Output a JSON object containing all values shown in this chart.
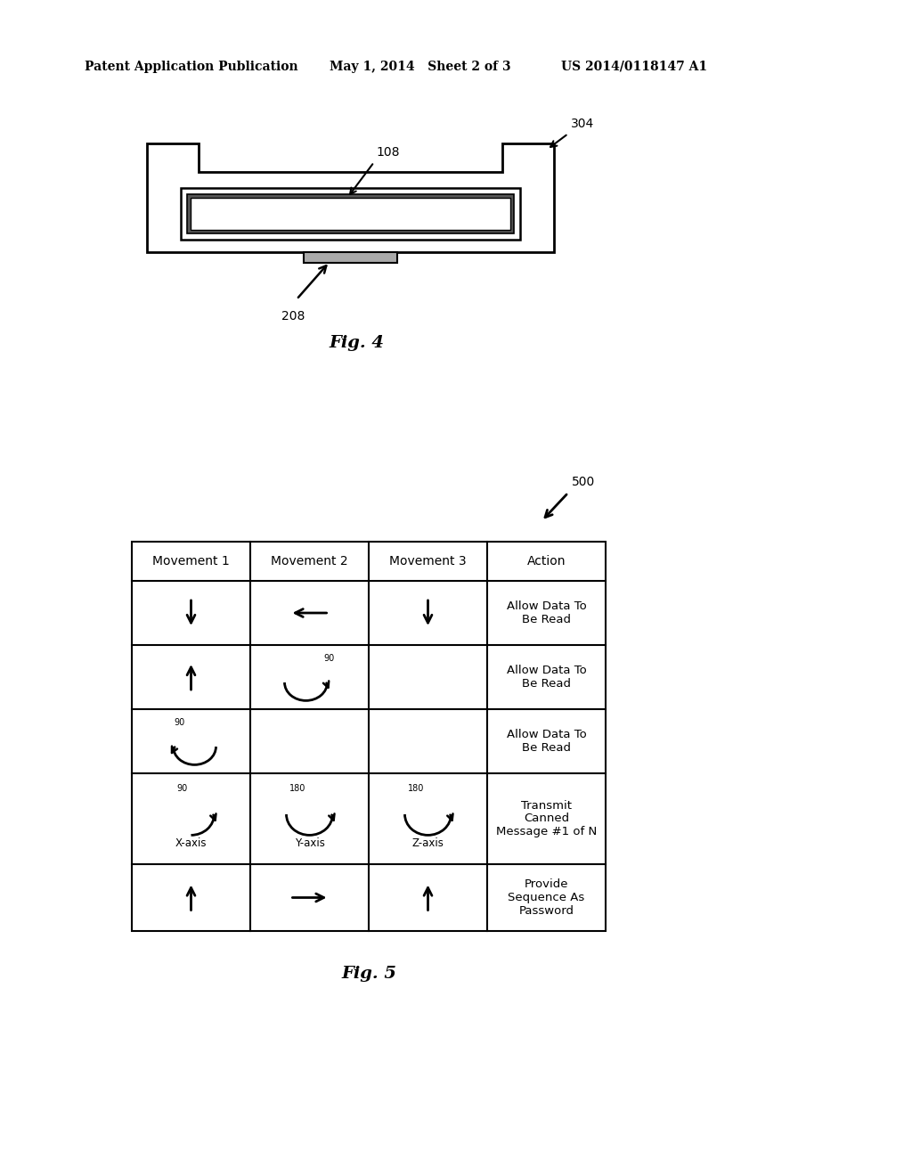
{
  "header_left": "Patent Application Publication",
  "header_mid": "May 1, 2014   Sheet 2 of 3",
  "header_right": "US 2014/0118147 A1",
  "fig4_label": "Fig. 4",
  "fig5_label": "Fig. 5",
  "label_108": "108",
  "label_304": "304",
  "label_208": "208",
  "label_500": "500",
  "table_headers": [
    "Movement 1",
    "Movement 2",
    "Movement 3",
    "Action"
  ],
  "table_actions": [
    "Allow Data To\nBe Read",
    "Allow Data To\nBe Read",
    "Allow Data To\nBe Read",
    "Transmit\nCanned\nMessage #1 of N",
    "Provide\nSequence As\nPassword"
  ],
  "bg_color": "#ffffff",
  "line_color": "#000000"
}
